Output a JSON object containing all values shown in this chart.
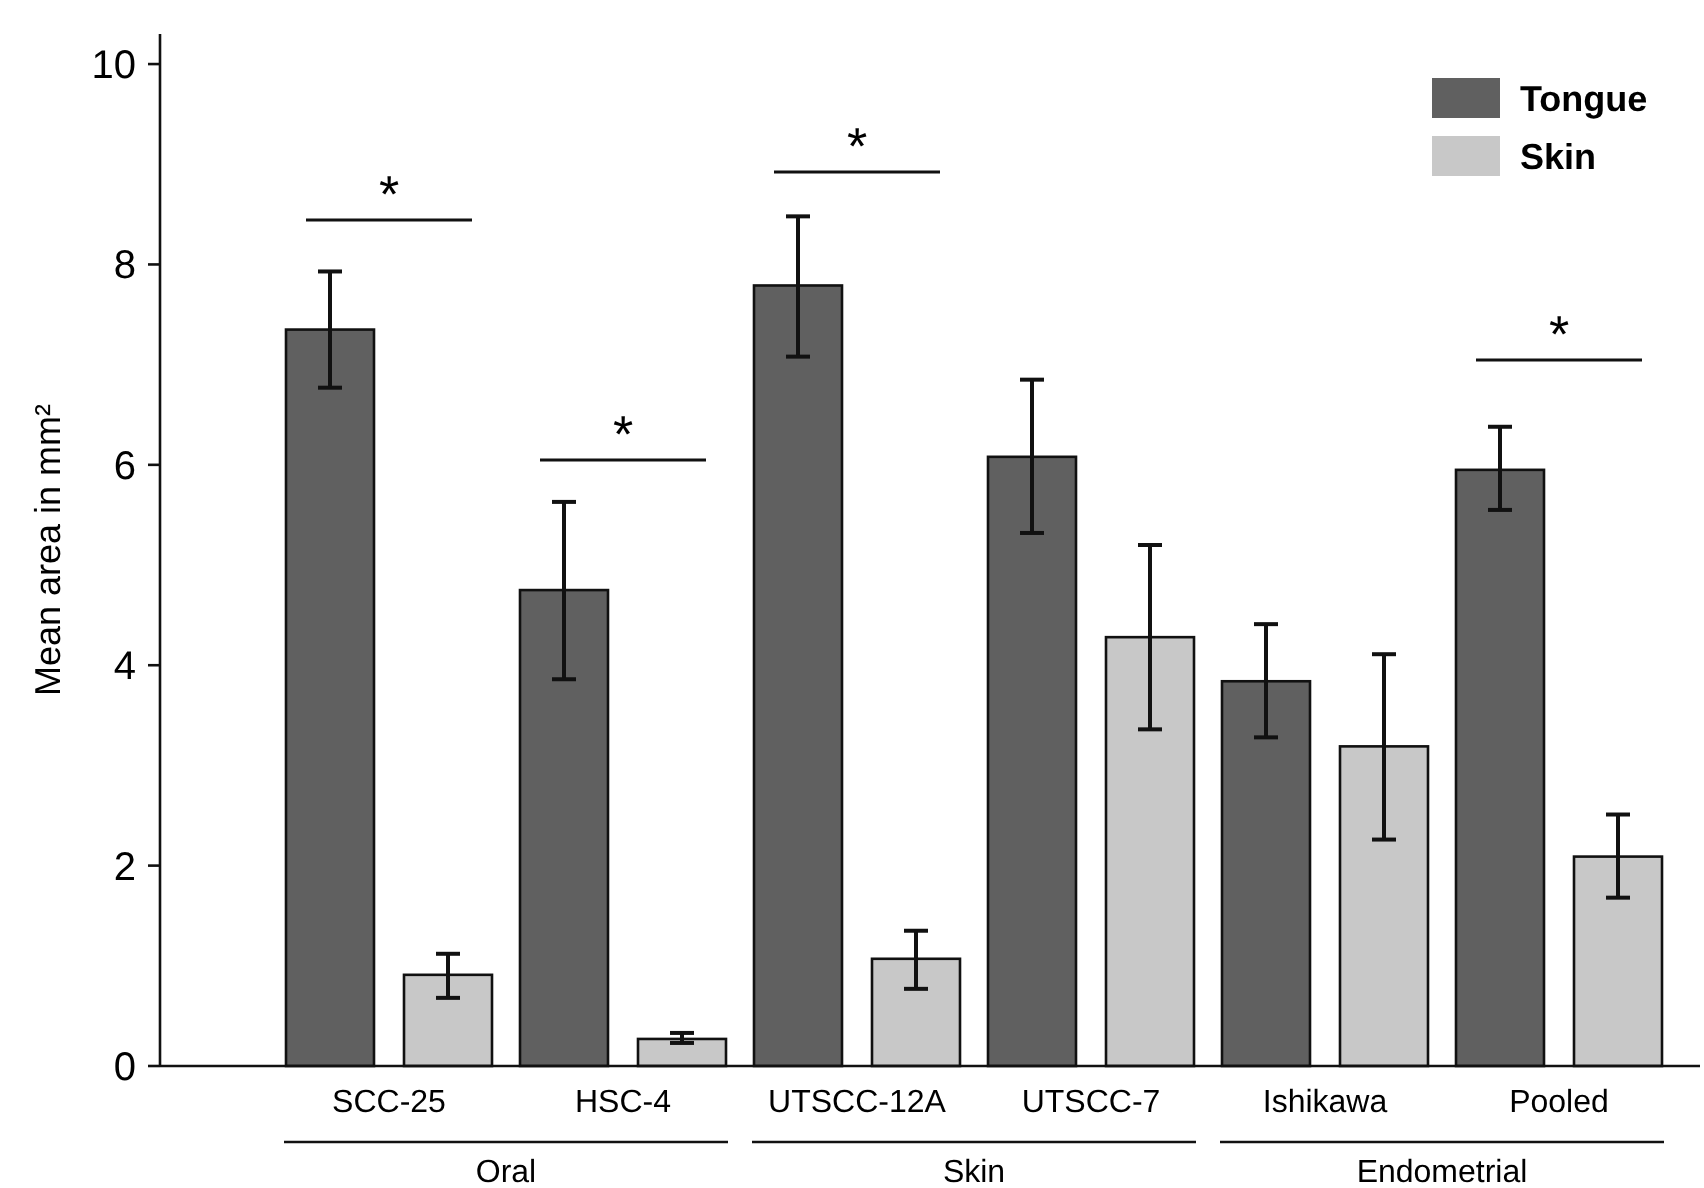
{
  "chart_data": {
    "type": "bar",
    "ylabel": "Mean area in mm²",
    "categories": [
      "SCC-25",
      "HSC-4",
      "UTSCC-12A",
      "UTSCC-7",
      "Ishikawa",
      "Pooled"
    ],
    "series": [
      {
        "name": "Tongue",
        "color": "#606060",
        "values": [
          7.35,
          4.75,
          7.79,
          6.08,
          3.84,
          5.95
        ],
        "errors": [
          [
            6.77,
            7.93
          ],
          [
            3.86,
            5.63
          ],
          [
            7.08,
            8.48
          ],
          [
            5.32,
            6.85
          ],
          [
            3.28,
            4.41
          ],
          [
            5.55,
            6.38
          ]
        ]
      },
      {
        "name": "Skin",
        "color": "#c8c8c8",
        "values": [
          0.91,
          0.27,
          1.07,
          4.28,
          3.19,
          2.09
        ],
        "errors": [
          [
            0.68,
            1.12
          ],
          [
            0.23,
            0.33
          ],
          [
            0.77,
            1.35
          ],
          [
            3.36,
            5.2
          ],
          [
            2.26,
            4.11
          ],
          [
            1.68,
            2.51
          ]
        ]
      }
    ],
    "ylim": [
      0,
      10.3
    ],
    "yticks": [
      0,
      2,
      4,
      6,
      8,
      10
    ],
    "grid": false,
    "legend": "top right",
    "annotations": [
      "*",
      "*",
      "*",
      "*",
      "Oral",
      "Skin",
      "Endometrial"
    ]
  }
}
